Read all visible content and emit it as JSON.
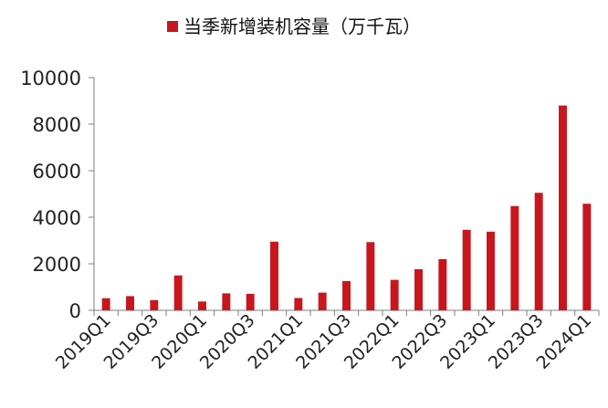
{
  "chart_data": {
    "type": "bar",
    "title": "",
    "xlabel": "",
    "ylabel": "",
    "ylim": [
      0,
      10000
    ],
    "yticks": [
      0,
      2000,
      4000,
      6000,
      8000,
      10000
    ],
    "grid": false,
    "legend_position": "top",
    "categories": [
      "2019Q1",
      "2019Q2",
      "2019Q3",
      "2019Q4",
      "2020Q1",
      "2020Q2",
      "2020Q3",
      "2020Q4",
      "2021Q1",
      "2021Q2",
      "2021Q3",
      "2021Q4",
      "2022Q1",
      "2022Q2",
      "2022Q3",
      "2022Q4",
      "2023Q1",
      "2023Q2",
      "2023Q3",
      "2023Q4",
      "2024Q1"
    ],
    "xtick_labels_shown": [
      "2019Q1",
      "2019Q3",
      "2020Q1",
      "2020Q3",
      "2021Q1",
      "2021Q3",
      "2022Q1",
      "2022Q3",
      "2023Q1",
      "2023Q3",
      "2024Q1"
    ],
    "series": [
      {
        "name": "当季新增装机容量（万千瓦）",
        "color": "#c8161d",
        "values": [
          520,
          610,
          440,
          1500,
          380,
          730,
          710,
          2950,
          530,
          760,
          1260,
          2930,
          1310,
          1770,
          2200,
          3460,
          3380,
          4480,
          5050,
          8800,
          4580
        ]
      }
    ]
  }
}
